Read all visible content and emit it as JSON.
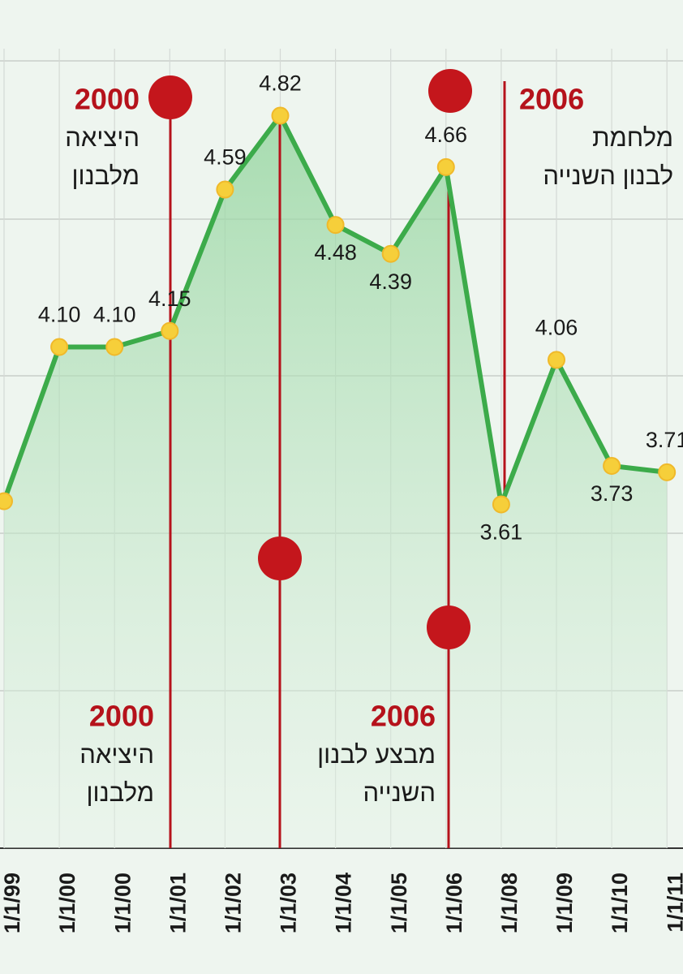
{
  "chart_data": {
    "type": "line",
    "categories": [
      "1/1/99",
      "1/1/00",
      "1/1/00",
      "1/1/01",
      "1/1/02",
      "1/1/03",
      "1/1/04",
      "1/1/05",
      "1/1/06",
      "1/1/08",
      "1/1/09",
      "1/1/10",
      "1/1/11"
    ],
    "series": [
      {
        "color": "#3cab4a",
        "values": [
          3.62,
          4.1,
          4.1,
          4.15,
          4.59,
          4.82,
          4.48,
          4.39,
          4.66,
          3.61,
          4.06,
          3.73,
          3.71
        ],
        "value_labels": [
          null,
          "4.10",
          "4.10",
          "4.15",
          "4.59",
          "4.82",
          "4.48",
          "4.39",
          "4.66",
          "3.61",
          "4.06",
          "3.73",
          "3.71"
        ]
      }
    ],
    "ylim": [
      2.54,
      5.18
    ],
    "annotations": [
      {
        "year": "2000",
        "text": [
          "היציאה",
          "מלבנון"
        ]
      },
      {
        "year": "2000",
        "text": [
          "היציאה",
          "מלבנון"
        ]
      },
      {
        "year": "2006",
        "text": [
          "מבצע לבנון",
          "השנייה"
        ]
      },
      {
        "year": "2006",
        "text": [
          "מלחמת",
          "לבנון השנייה"
        ]
      }
    ]
  }
}
